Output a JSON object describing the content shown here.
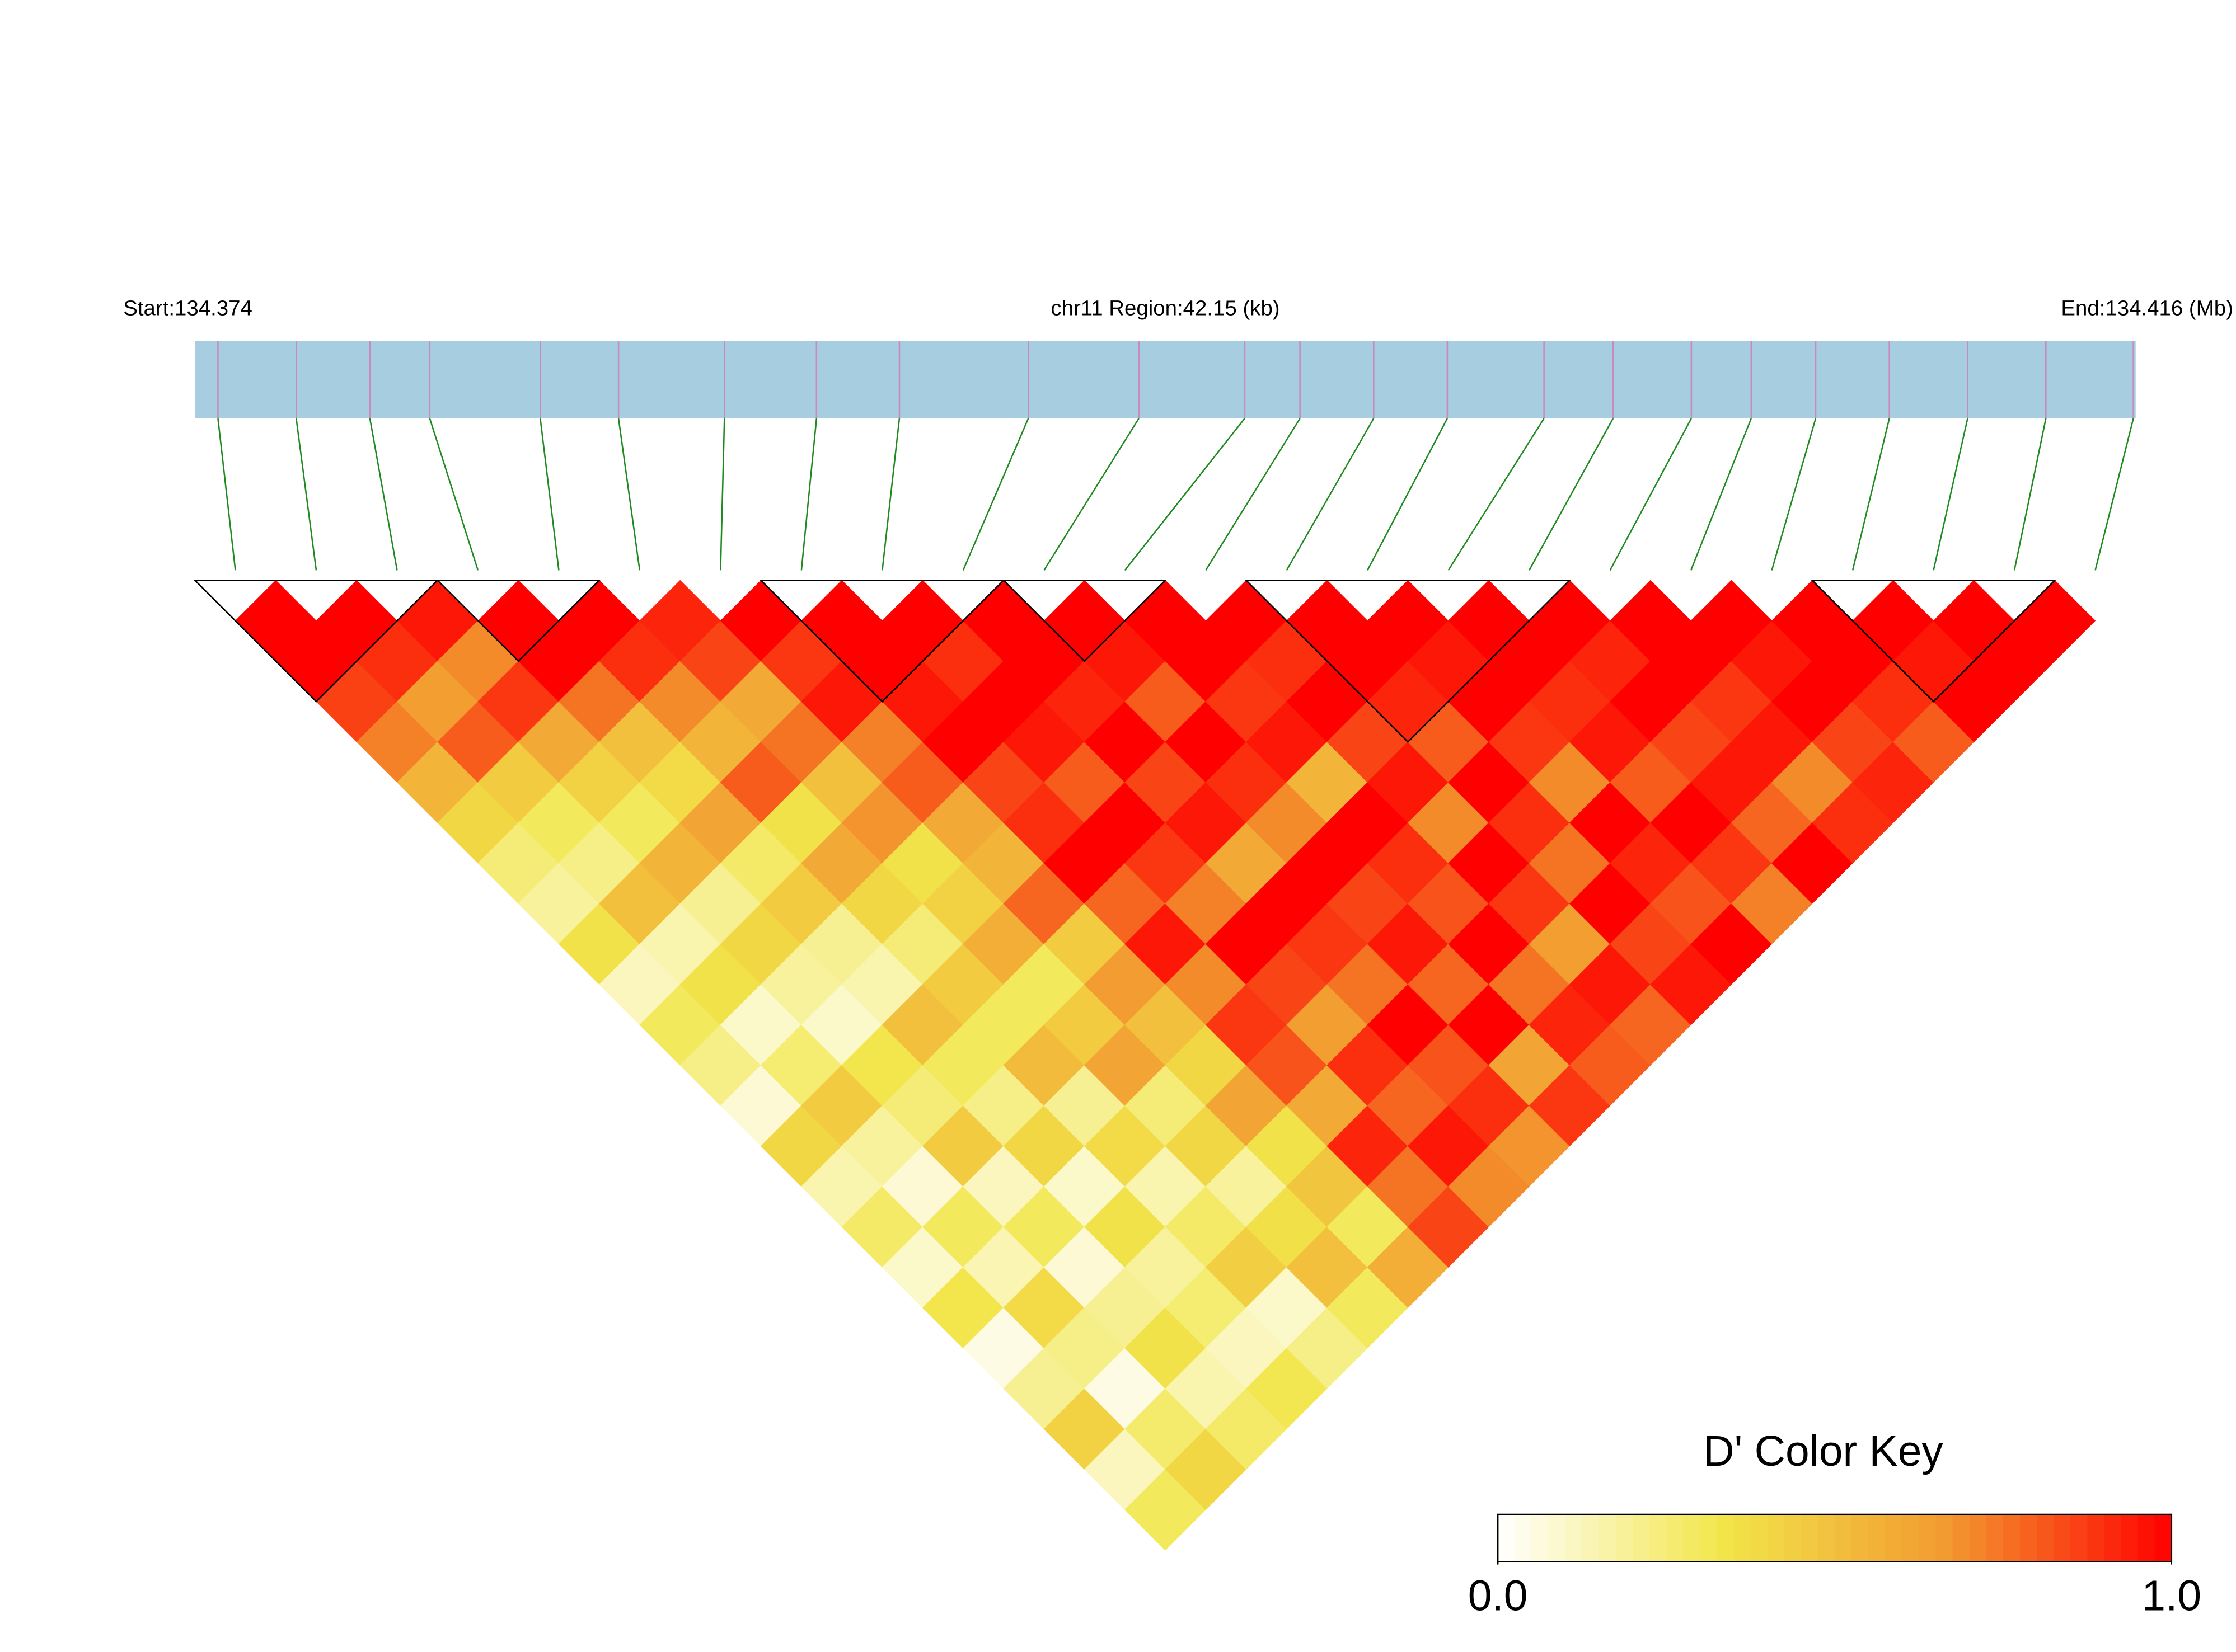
{
  "chart_data": {
    "type": "ld-heatmap",
    "start_label": "Start:134.374",
    "region_label": "chr11 Region:42.15 (kb)",
    "end_label": "End:134.416 (Mb)",
    "xlim": [
      134.374,
      134.41615
    ],
    "positions": [
      134.3745,
      134.3762,
      134.3778,
      134.3791,
      134.3815,
      134.3832,
      134.3855,
      134.3875,
      134.3893,
      134.3921,
      134.3945,
      134.3968,
      134.398,
      134.3996,
      134.4012,
      134.4033,
      134.4048,
      134.4065,
      134.4078,
      134.4092,
      134.4108,
      134.4125,
      134.4142,
      134.4161
    ],
    "dprime": [
      [
        1,
        1,
        0.86,
        0.72,
        0.55,
        0.4,
        0.25,
        0.18,
        0.35,
        0.12,
        0.3,
        0.22,
        0.08,
        0.4,
        0.15,
        0.28,
        0.1,
        0.33,
        0.05,
        0.2,
        0.42,
        0.12,
        0.3
      ],
      [
        1,
        0.9,
        0.65,
        0.8,
        0.45,
        0.3,
        0.22,
        0.5,
        0.15,
        0.35,
        0.1,
        0.26,
        0.45,
        0.18,
        0.08,
        0.3,
        0.14,
        0.38,
        0.22,
        0.05,
        0.27,
        0.4
      ],
      [
        0.95,
        0.7,
        0.88,
        0.6,
        0.42,
        0.3,
        0.55,
        0.2,
        0.4,
        0.18,
        0.1,
        0.33,
        0.25,
        0.45,
        0.12,
        0.3,
        0.08,
        0.2,
        0.35,
        0.15,
        0.28
      ],
      [
        1,
        1,
        0.75,
        0.5,
        0.38,
        0.62,
        0.28,
        0.45,
        0.2,
        0.15,
        0.5,
        0.3,
        0.22,
        0.4,
        0.1,
        0.35,
        0.18,
        0.26,
        0.12,
        0.32
      ],
      [
        1,
        0.9,
        0.7,
        0.55,
        0.8,
        0.35,
        0.6,
        0.4,
        0.25,
        0.45,
        0.3,
        0.52,
        0.2,
        0.38,
        0.15,
        0.28,
        0.44,
        0.1,
        0.22
      ],
      [
        0.92,
        0.85,
        0.6,
        0.75,
        0.5,
        0.68,
        0.35,
        0.42,
        0.58,
        0.3,
        0.45,
        0.62,
        0.25,
        0.4,
        0.18,
        0.36,
        0.5,
        0.3
      ],
      [
        1,
        0.88,
        0.95,
        0.72,
        0.8,
        0.6,
        0.55,
        0.78,
        0.45,
        0.66,
        0.5,
        0.4,
        0.62,
        0.35,
        0.48,
        0.3,
        0.58
      ],
      [
        1,
        1,
        0.95,
        1,
        0.85,
        0.9,
        1,
        0.78,
        0.95,
        0.7,
        0.88,
        0.82,
        0.6,
        0.92,
        0.75,
        0.85
      ],
      [
        1,
        0.9,
        1,
        0.95,
        0.8,
        1,
        0.88,
        0.72,
        1,
        0.85,
        0.65,
        0.9,
        0.78,
        0.95,
        0.7
      ],
      [
        1,
        1,
        0.92,
        1,
        0.85,
        0.95,
        0.6,
        1,
        0.88,
        0.75,
        1,
        0.82,
        0.9,
        0.68
      ],
      [
        1,
        0.95,
        0.8,
        1,
        0.9,
        0.7,
        1,
        0.85,
        0.95,
        0.78,
        1,
        0.62,
        0.88
      ],
      [
        1,
        1,
        0.88,
        0.95,
        0.55,
        1,
        0.9,
        0.82,
        1,
        0.75,
        0.92,
        0.8
      ],
      [
        1,
        0.9,
        1,
        0.85,
        0.95,
        0.7,
        1,
        0.88,
        0.65,
        0.95,
        0.78
      ],
      [
        1,
        1,
        0.92,
        0.8,
        1,
        0.9,
        0.75,
        1,
        0.85,
        0.95
      ],
      [
        1,
        0.95,
        1,
        0.88,
        0.7,
        1,
        0.92,
        0.82,
        1
      ],
      [
        1,
        1,
        0.9,
        0.95,
        0.8,
        1,
        0.88,
        0.72
      ],
      [
        1,
        0.92,
        1,
        0.85,
        0.95,
        0.78,
        1
      ],
      [
        1,
        1,
        0.88,
        0.95,
        0.7,
        0.9
      ],
      [
        1,
        0.95,
        1,
        0.85,
        0.92
      ],
      [
        1,
        1,
        0.9,
        0.8
      ],
      [
        1,
        0.95,
        1
      ],
      [
        1,
        1
      ],
      [
        1
      ]
    ],
    "blocks": [
      [
        0,
        2
      ],
      [
        3,
        4
      ],
      [
        7,
        9
      ],
      [
        10,
        11
      ],
      [
        13,
        16
      ],
      [
        20,
        22
      ]
    ],
    "bar_color": "#a6cde0",
    "marker_color": "#c98ac0",
    "connector_color": "#1f8a1f",
    "block_outline_color": "#000000",
    "color_scale": [
      "#ffffff",
      "#f2e64a",
      "#f29a30",
      "#ff0000"
    ],
    "zlim": [
      0,
      1
    ],
    "color_key_title": "D' Color Key",
    "key_ticks": [
      {
        "value": 0,
        "label": "0.0"
      },
      {
        "value": 1,
        "label": "1.0"
      }
    ]
  }
}
